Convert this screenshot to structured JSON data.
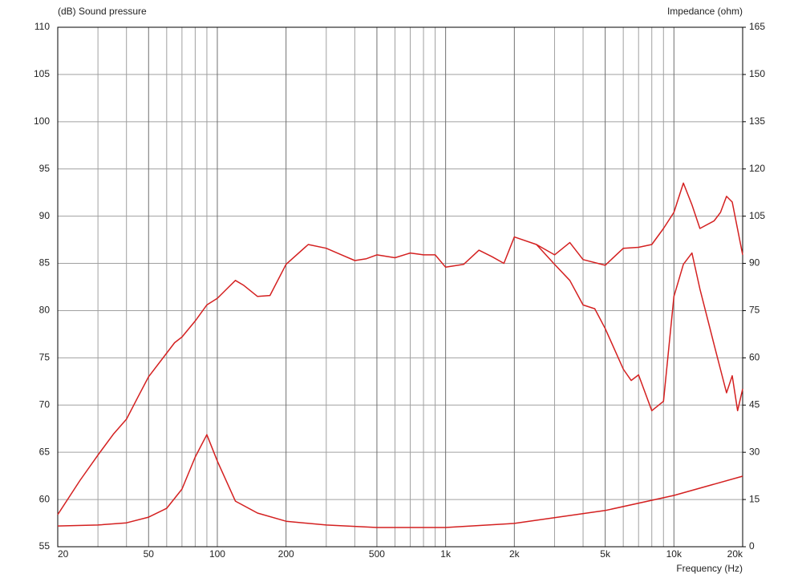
{
  "chart_data": {
    "type": "line",
    "ylabel": "(dB)  Sound pressure",
    "y2label": "Impedance  (ohm)",
    "xlabel": "Frequency  (Hz)",
    "xscale": "log",
    "grid": true,
    "xlim": [
      20,
      20000
    ],
    "xticks": [
      20,
      50,
      100,
      200,
      500,
      {
        "value": 1000,
        "label": "1k"
      },
      {
        "value": 2000,
        "label": "2k"
      },
      {
        "value": 5000,
        "label": "5k"
      },
      {
        "value": 10000,
        "label": "10k"
      },
      {
        "value": 20000,
        "label": "20k"
      }
    ],
    "xminor": [
      30,
      40,
      60,
      70,
      80,
      90,
      300,
      400,
      600,
      700,
      800,
      900,
      3000,
      4000,
      6000,
      7000,
      8000,
      9000
    ],
    "ylim": [
      55,
      110
    ],
    "yticks": [
      55,
      60,
      65,
      70,
      75,
      80,
      85,
      90,
      95,
      100,
      105,
      110
    ],
    "y2lim": [
      0,
      165
    ],
    "y2ticks": [
      0,
      15,
      30,
      45,
      60,
      75,
      90,
      105,
      120,
      135,
      150,
      165
    ],
    "series": [
      {
        "color": "#d42020",
        "x": [
          20,
          25,
          30,
          35,
          40,
          45,
          50,
          60,
          65,
          70,
          80,
          90,
          100,
          110,
          120,
          130,
          150,
          170,
          200,
          250,
          300,
          350,
          400,
          450,
          500,
          600,
          700,
          800,
          900,
          1000,
          1200,
          1400,
          1600,
          1800,
          2000,
          2500,
          3000,
          3500,
          4000,
          5000,
          6000,
          7000,
          8000,
          9000,
          10000,
          11000,
          12000,
          13000,
          15000,
          16000,
          17000,
          18000,
          20000
        ],
        "values": [
          58.4,
          62.0,
          64.7,
          66.9,
          68.5,
          70.9,
          73.0,
          75.5,
          76.6,
          77.2,
          78.9,
          80.6,
          81.3,
          82.3,
          83.2,
          82.7,
          81.5,
          81.6,
          84.9,
          87.0,
          86.6,
          85.9,
          85.3,
          85.5,
          85.9,
          85.6,
          86.1,
          85.9,
          85.9,
          84.6,
          84.9,
          86.4,
          85.7,
          85.0,
          87.8,
          87.0,
          85.9,
          87.2,
          85.4,
          84.8,
          86.6,
          86.7,
          87.0,
          88.7,
          90.4,
          93.5,
          91.2,
          88.7,
          89.5,
          90.4,
          92.1,
          91.5,
          85.9
        ]
      },
      {
        "color": "#d42020",
        "x": [
          2500,
          3000,
          3500,
          4000,
          4500,
          5000,
          6000,
          6500,
          7000,
          8000,
          9000,
          10000,
          11000,
          12000,
          13000,
          15000,
          17000,
          18000,
          19000,
          20000
        ],
        "values": [
          87.0,
          84.9,
          83.2,
          80.6,
          80.2,
          78.1,
          73.8,
          72.6,
          73.2,
          69.4,
          70.4,
          81.5,
          84.9,
          86.1,
          82.3,
          76.4,
          71.3,
          73.1,
          69.4,
          71.7
        ]
      },
      {
        "color": "#d42020",
        "axis": "y2",
        "x": [
          20,
          30,
          40,
          50,
          60,
          70,
          80,
          90,
          100,
          120,
          150,
          200,
          300,
          500,
          1000,
          2000,
          5000,
          10000,
          20000
        ],
        "values": [
          6.6,
          6.9,
          7.6,
          9.4,
          12.2,
          18.3,
          28.5,
          35.6,
          27.2,
          14.5,
          10.7,
          8.1,
          6.9,
          6.1,
          6.1,
          7.4,
          11.5,
          16.3,
          22.4
        ]
      }
    ]
  }
}
